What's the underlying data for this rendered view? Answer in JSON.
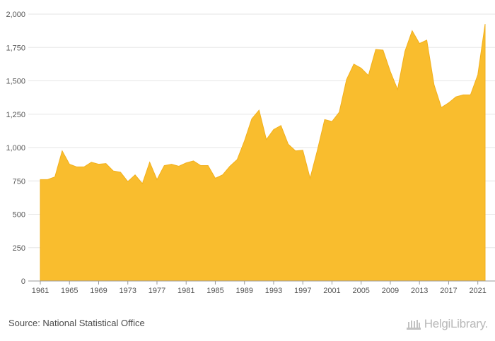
{
  "chart_data": {
    "type": "area",
    "x": [
      1961,
      1962,
      1963,
      1964,
      1965,
      1966,
      1967,
      1968,
      1969,
      1970,
      1971,
      1972,
      1973,
      1974,
      1975,
      1976,
      1977,
      1978,
      1979,
      1980,
      1981,
      1982,
      1983,
      1984,
      1985,
      1986,
      1987,
      1988,
      1989,
      1990,
      1991,
      1992,
      1993,
      1994,
      1995,
      1996,
      1997,
      1998,
      1999,
      2000,
      2001,
      2002,
      2003,
      2004,
      2005,
      2006,
      2007,
      2008,
      2009,
      2010,
      2011,
      2012,
      2013,
      2014,
      2015,
      2016,
      2017,
      2018,
      2019,
      2020,
      2021,
      2022
    ],
    "values": [
      760,
      760,
      780,
      975,
      875,
      855,
      855,
      890,
      875,
      880,
      825,
      815,
      745,
      795,
      730,
      890,
      760,
      865,
      875,
      860,
      885,
      900,
      865,
      865,
      770,
      795,
      860,
      910,
      1050,
      1215,
      1280,
      1060,
      1135,
      1165,
      1025,
      975,
      980,
      770,
      980,
      1210,
      1195,
      1265,
      1510,
      1625,
      1595,
      1540,
      1735,
      1730,
      1570,
      1435,
      1720,
      1875,
      1780,
      1805,
      1470,
      1300,
      1335,
      1380,
      1395,
      1395,
      1545,
      1925
    ],
    "ylim": [
      0,
      2000
    ],
    "y_ticks": [
      "0",
      "250",
      "500",
      "750",
      "1,000",
      "1,250",
      "1,500",
      "1,750",
      "2,000"
    ],
    "y_tick_values": [
      0,
      250,
      500,
      750,
      1000,
      1250,
      1500,
      1750,
      2000
    ],
    "x_ticks": [
      "1961",
      "1965",
      "1969",
      "1973",
      "1977",
      "1981",
      "1985",
      "1989",
      "1993",
      "1997",
      "2001",
      "2005",
      "2009",
      "2013",
      "2017",
      "2021"
    ],
    "x_tick_values": [
      1961,
      1965,
      1969,
      1973,
      1977,
      1981,
      1985,
      1989,
      1993,
      1997,
      2001,
      2005,
      2009,
      2013,
      2017,
      2021
    ],
    "grid": true,
    "fill_color": "#F9BD2E",
    "grid_color": "#e6e6e6",
    "axis_color": "#999999"
  },
  "footer": {
    "source": "Source: National Statistical Office",
    "brand": "HelgiLibrary."
  }
}
